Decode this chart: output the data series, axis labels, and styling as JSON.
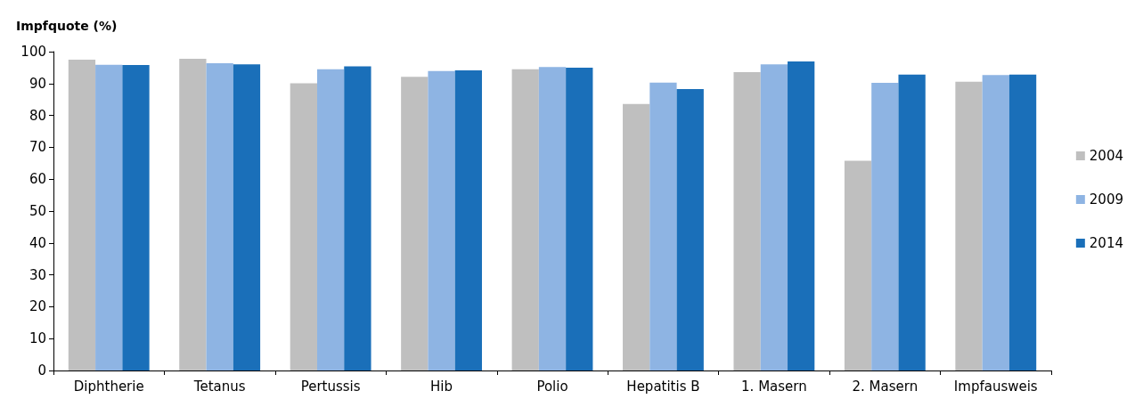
{
  "chart_data": {
    "type": "bar",
    "ylabel": "Impfquote (%)",
    "categories": [
      "Diphtherie",
      "Tetanus",
      "Pertussis",
      "Hib",
      "Polio",
      "Hepatitis B",
      "1. Masern",
      "2. Masern",
      "Impfausweis"
    ],
    "series": [
      {
        "name": "2004",
        "color": "#bfbfbf",
        "values": [
          97.5,
          97.8,
          90.1,
          92.1,
          94.5,
          83.6,
          93.6,
          65.8,
          90.6
        ]
      },
      {
        "name": "2009",
        "color": "#8eb4e3",
        "values": [
          95.9,
          96.4,
          94.5,
          93.9,
          95.2,
          90.3,
          96.0,
          90.2,
          92.7
        ]
      },
      {
        "name": "2014",
        "color": "#1a6fb9",
        "values": [
          95.8,
          96.0,
          95.4,
          94.1,
          95.0,
          88.3,
          96.9,
          92.8,
          92.8
        ]
      }
    ],
    "ylim": [
      0,
      100
    ],
    "yticks": [
      0,
      10,
      20,
      30,
      40,
      50,
      60,
      70,
      80,
      90,
      100
    ],
    "grid": false,
    "legend": "right"
  }
}
